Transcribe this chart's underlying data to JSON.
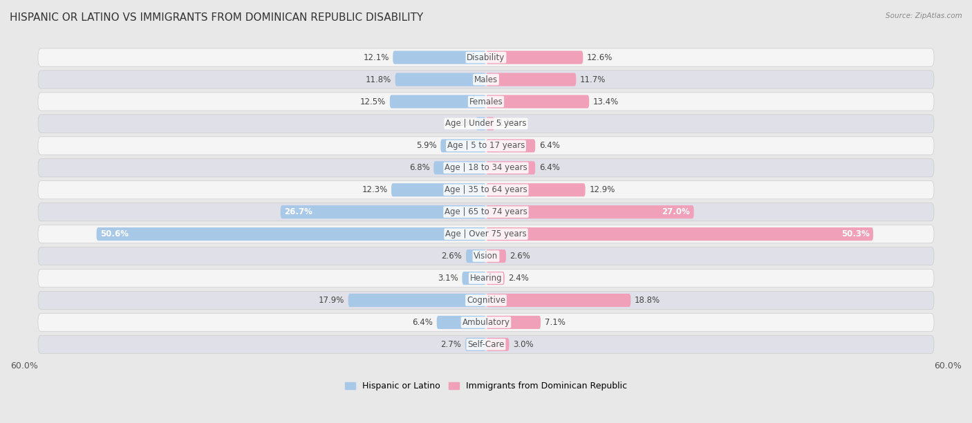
{
  "title": "HISPANIC OR LATINO VS IMMIGRANTS FROM DOMINICAN REPUBLIC DISABILITY",
  "source": "Source: ZipAtlas.com",
  "categories": [
    "Disability",
    "Males",
    "Females",
    "Age | Under 5 years",
    "Age | 5 to 17 years",
    "Age | 18 to 34 years",
    "Age | 35 to 64 years",
    "Age | 65 to 74 years",
    "Age | Over 75 years",
    "Vision",
    "Hearing",
    "Cognitive",
    "Ambulatory",
    "Self-Care"
  ],
  "left_values": [
    12.1,
    11.8,
    12.5,
    1.3,
    5.9,
    6.8,
    12.3,
    26.7,
    50.6,
    2.6,
    3.1,
    17.9,
    6.4,
    2.7
  ],
  "right_values": [
    12.6,
    11.7,
    13.4,
    1.1,
    6.4,
    6.4,
    12.9,
    27.0,
    50.3,
    2.6,
    2.4,
    18.8,
    7.1,
    3.0
  ],
  "left_label": "Hispanic or Latino",
  "right_label": "Immigrants from Dominican Republic",
  "left_color": "#a8c8e8",
  "right_color": "#f0a0b8",
  "axis_max": 60.0,
  "bg_color": "#e8e8e8",
  "row_color_even": "#f5f5f5",
  "row_color_odd": "#e0e0e8",
  "title_fontsize": 11,
  "label_fontsize": 8.5,
  "tick_fontsize": 9,
  "bar_height": 0.6,
  "value_label_threshold": 20.0
}
